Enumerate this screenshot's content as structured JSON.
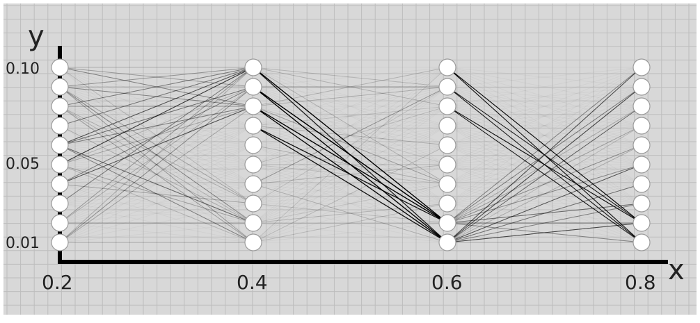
{
  "diagram": {
    "x_axis_label": "x",
    "y_axis_label": "y",
    "x_ticks": [
      "0.2",
      "0.4",
      "0.6",
      "0.8"
    ],
    "y_ticks": [
      "0.10",
      "0.05",
      "0.01"
    ],
    "layers": [
      {
        "x": 0.2,
        "node_count": 10
      },
      {
        "x": 0.4,
        "node_count": 10
      },
      {
        "x": 0.6,
        "node_count": 10
      },
      {
        "x": 0.8,
        "node_count": 10
      }
    ],
    "colors": {
      "background": "#d8d8d8",
      "grid": "#bdbdbd",
      "axis": "#000000",
      "node_fill": "#ffffff",
      "edge": "#000000"
    }
  }
}
